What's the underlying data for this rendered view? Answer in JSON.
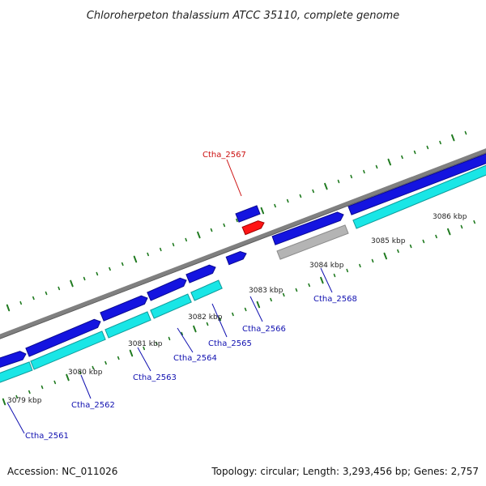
{
  "title": "Chloroherpeton thalassium ATCC 35110, complete genome",
  "footer": {
    "accession": "Accession: NC_011026",
    "summary": "Topology: circular; Length: 3,293,456 bp; Genes: 2,757"
  },
  "colors": {
    "background": "#ffffff",
    "backbone": "#808080",
    "cds_track": "#1414e0",
    "cds_track_dark": "#0a0a90",
    "cyan_track": "#19e6e6",
    "cyan_track_dark": "#0e9a9a",
    "grey_feature": "#b4b4b4",
    "highlight_feature": "#ff1414",
    "tick": "#1f7a1f",
    "label_blue": "#1010b0",
    "label_red": "#cc1010"
  },
  "kbp_labels": [
    "3079 kbp",
    "3080 kbp",
    "3081 kbp",
    "3082 kbp",
    "3083 kbp",
    "3084 kbp",
    "3085 kbp",
    "3086 kbp"
  ],
  "gene_labels": [
    {
      "text": "Ctha_2561",
      "color": "blue"
    },
    {
      "text": "Ctha_2562",
      "color": "blue"
    },
    {
      "text": "Ctha_2563",
      "color": "blue"
    },
    {
      "text": "Ctha_2564",
      "color": "blue"
    },
    {
      "text": "Ctha_2565",
      "color": "blue"
    },
    {
      "text": "Ctha_2566",
      "color": "blue"
    },
    {
      "text": "Ctha_2567",
      "color": "red"
    },
    {
      "text": "Ctha_2568",
      "color": "blue"
    }
  ]
}
